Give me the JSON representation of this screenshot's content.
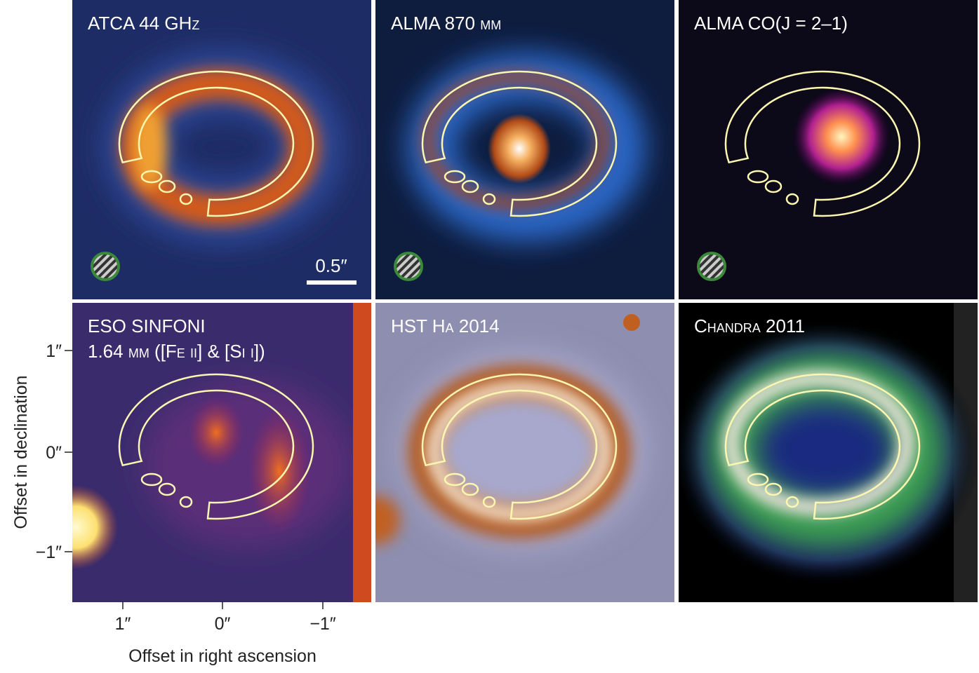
{
  "panels": [
    {
      "label": [
        "ATCA 44 GHz"
      ]
    },
    {
      "label": [
        "ALMA 870 μm"
      ]
    },
    {
      "label": [
        "ALMA CO(J = 2–1)"
      ]
    },
    {
      "label": [
        "ESO SINFONI",
        "1.64 μm ([Fe ii] & [Si i])"
      ]
    },
    {
      "label": [
        "HST Hα 2014"
      ]
    },
    {
      "label": [
        "Chandra 2011"
      ]
    }
  ],
  "scale_bar": "0.5″",
  "axes": {
    "y_label": "Offset in declination",
    "x_label": "Offset in right ascension",
    "y_ticks": [
      "1″",
      "0″",
      "−1″"
    ],
    "x_ticks": [
      "1″",
      "0″",
      "−1″"
    ]
  }
}
